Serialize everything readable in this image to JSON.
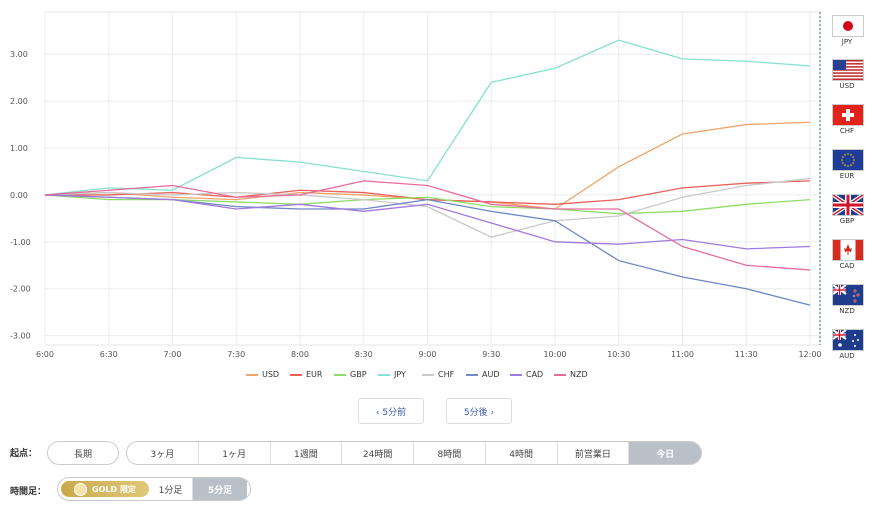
{
  "chart_data": {
    "type": "line",
    "x": [
      "6:00",
      "6:30",
      "7:00",
      "7:30",
      "8:00",
      "8:30",
      "9:00",
      "9:30",
      "10:00",
      "10:30",
      "11:00",
      "11:30",
      "12:00"
    ],
    "y_ticks": [
      "3.00",
      "2.00",
      "1.00",
      "0.00",
      "-1.00",
      "-2.00",
      "-3.00"
    ],
    "ylim": [
      -3.2,
      3.9
    ],
    "grid": true,
    "legend_position": "bottom",
    "series": [
      {
        "name": "USD",
        "color": "#f0a46a",
        "values": [
          0,
          0.05,
          -0.05,
          -0.1,
          0.05,
          0,
          -0.1,
          -0.15,
          -0.3,
          0.6,
          1.3,
          1.5,
          1.55
        ]
      },
      {
        "name": "EUR",
        "color": "#e8625a",
        "values": [
          0,
          0,
          0.05,
          -0.05,
          0.1,
          0.05,
          -0.1,
          -0.15,
          -0.2,
          -0.1,
          0.15,
          0.25,
          0.3
        ]
      },
      {
        "name": "GBP",
        "color": "#8fdc6a",
        "values": [
          0,
          -0.1,
          -0.1,
          -0.15,
          -0.2,
          -0.1,
          -0.05,
          -0.25,
          -0.3,
          -0.4,
          -0.35,
          -0.2,
          -0.1
        ]
      },
      {
        "name": "JPY",
        "color": "#86e0cf",
        "values": [
          0,
          0.15,
          0.1,
          0.8,
          0.7,
          0.5,
          0.3,
          2.4,
          2.7,
          3.3,
          2.9,
          2.85,
          2.75
        ]
      },
      {
        "name": "CHF",
        "color": "#c9c9c9",
        "values": [
          0,
          0.05,
          0,
          0.05,
          0,
          -0.1,
          -0.25,
          -0.9,
          -0.55,
          -0.45,
          -0.05,
          0.2,
          0.35
        ]
      },
      {
        "name": "AUD",
        "color": "#6f86c9",
        "values": [
          0,
          -0.05,
          -0.1,
          -0.25,
          -0.3,
          -0.3,
          -0.1,
          -0.35,
          -0.55,
          -1.4,
          -1.75,
          -2.0,
          -2.35
        ]
      },
      {
        "name": "CAD",
        "color": "#a07ae0",
        "values": [
          0,
          -0.05,
          -0.1,
          -0.3,
          -0.2,
          -0.35,
          -0.2,
          -0.6,
          -1.0,
          -1.05,
          -0.95,
          -1.15,
          -1.1
        ]
      },
      {
        "name": "NZD",
        "color": "#e86c9f",
        "values": [
          0,
          0.1,
          0.2,
          -0.05,
          0,
          0.3,
          0.2,
          -0.2,
          -0.3,
          -0.3,
          -1.1,
          -1.5,
          -1.6
        ]
      }
    ]
  },
  "flags": [
    {
      "code": "JPY",
      "icon": "japan-flag-icon"
    },
    {
      "code": "USD",
      "icon": "us-flag-icon"
    },
    {
      "code": "CHF",
      "icon": "swiss-flag-icon"
    },
    {
      "code": "EUR",
      "icon": "eu-flag-icon"
    },
    {
      "code": "GBP",
      "icon": "uk-flag-icon"
    },
    {
      "code": "CAD",
      "icon": "canada-flag-icon"
    },
    {
      "code": "NZD",
      "icon": "nz-flag-icon"
    },
    {
      "code": "AUD",
      "icon": "australia-flag-icon"
    }
  ],
  "nav": {
    "prev": "‹ 5分前",
    "next": "5分後 ›"
  },
  "start": {
    "label": "起点：",
    "long": "長期",
    "options": [
      "3ヶ月",
      "1ヶ月",
      "1週間",
      "24時間",
      "8時間",
      "4時間",
      "前営業日",
      "今日"
    ],
    "active": "今日"
  },
  "timeframe": {
    "label": "時間足：",
    "gold": "GOLD 限定",
    "options": [
      "1分足",
      "5分足"
    ],
    "active": "5分足"
  }
}
